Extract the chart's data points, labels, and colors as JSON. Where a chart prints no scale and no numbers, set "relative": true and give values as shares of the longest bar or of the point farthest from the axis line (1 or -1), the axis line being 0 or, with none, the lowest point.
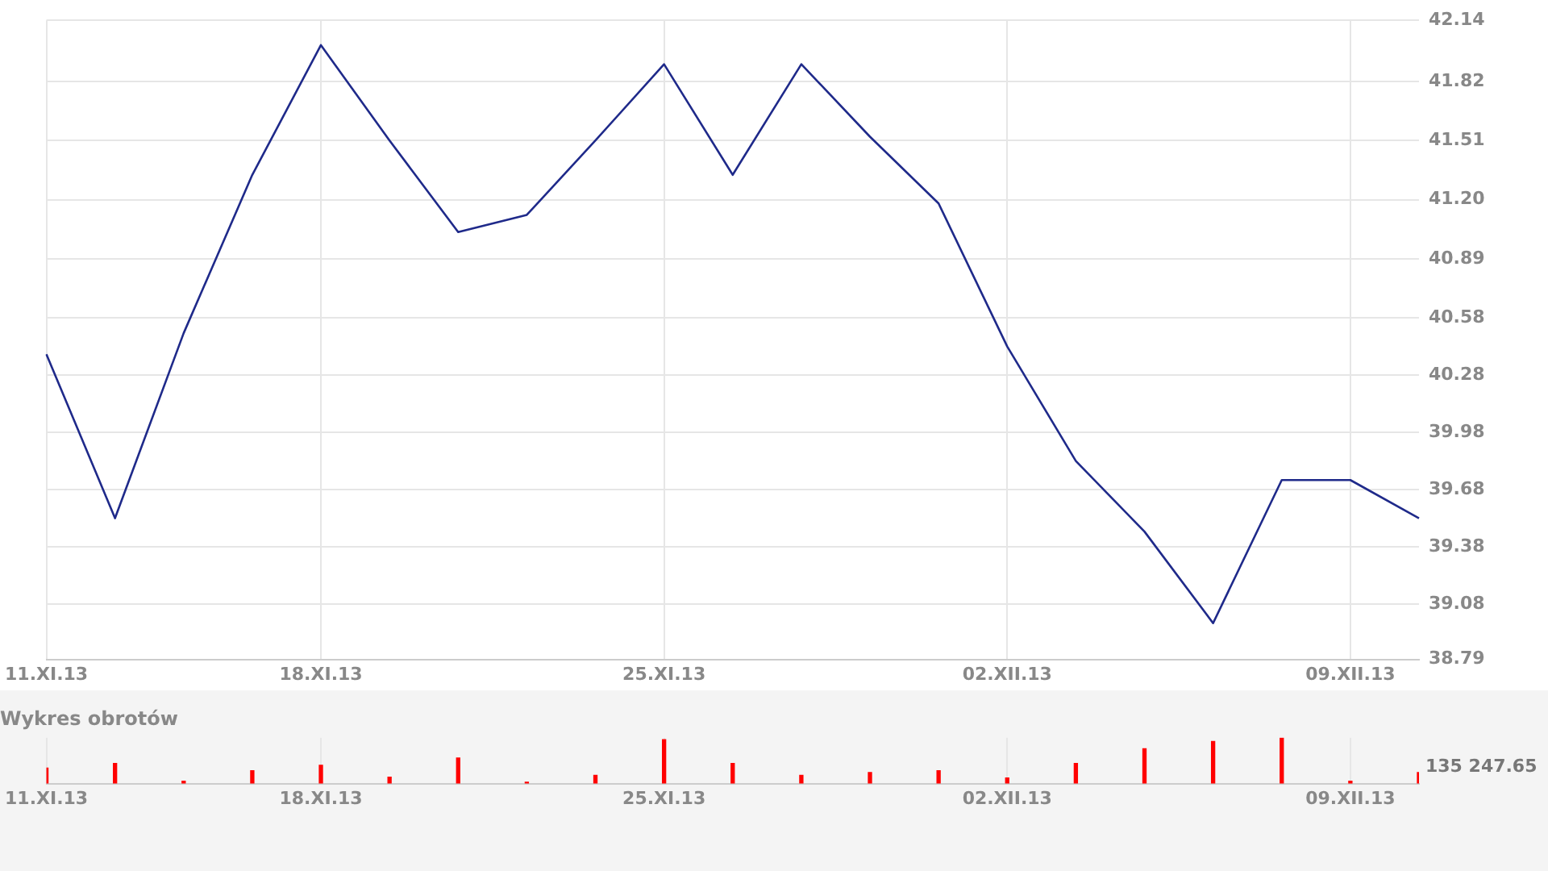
{
  "chart_data": [
    {
      "type": "line",
      "categories": [
        "11.XI.13",
        null,
        null,
        null,
        "18.XI.13",
        null,
        null,
        null,
        null,
        "25.XI.13",
        null,
        null,
        null,
        null,
        "02.XII.13",
        null,
        null,
        null,
        null,
        "09.XII.13",
        null
      ],
      "series": [
        {
          "color": "#1f2a8a",
          "values": [
            40.39,
            39.53,
            40.5,
            41.33,
            42.01,
            41.51,
            41.03,
            41.12,
            41.51,
            41.91,
            41.33,
            41.91,
            41.53,
            41.18,
            40.43,
            39.83,
            39.46,
            38.98,
            39.73,
            39.73,
            39.53
          ]
        }
      ],
      "ylim": [
        38.79,
        42.14
      ],
      "yticks": [
        38.79,
        39.08,
        39.38,
        39.68,
        39.98,
        40.28,
        40.58,
        40.89,
        {
          "value": 41.2,
          "label": "41.20"
        },
        41.51,
        41.82,
        42.14
      ],
      "grid": true,
      "marker": "none",
      "line_style": "solid"
    },
    {
      "type": "bar",
      "title": "Wykres obrotów",
      "categories": [
        "11.XI.13",
        null,
        null,
        null,
        "18.XI.13",
        null,
        null,
        null,
        null,
        "25.XI.13",
        null,
        null,
        null,
        null,
        "02.XII.13",
        null,
        null,
        null,
        null,
        "09.XII.13",
        null
      ],
      "values": [
        0.34,
        0.44,
        0.05,
        0.28,
        0.4,
        0.14,
        0.56,
        0.03,
        0.18,
        0.96,
        0.44,
        0.18,
        0.24,
        0.28,
        0.12,
        0.44,
        0.76,
        0.92,
        1.0,
        0.05,
        0.24
      ],
      "color": "#ff0000",
      "relative": true,
      "grid": "x",
      "annotations": [
        "135 247.65"
      ]
    }
  ]
}
